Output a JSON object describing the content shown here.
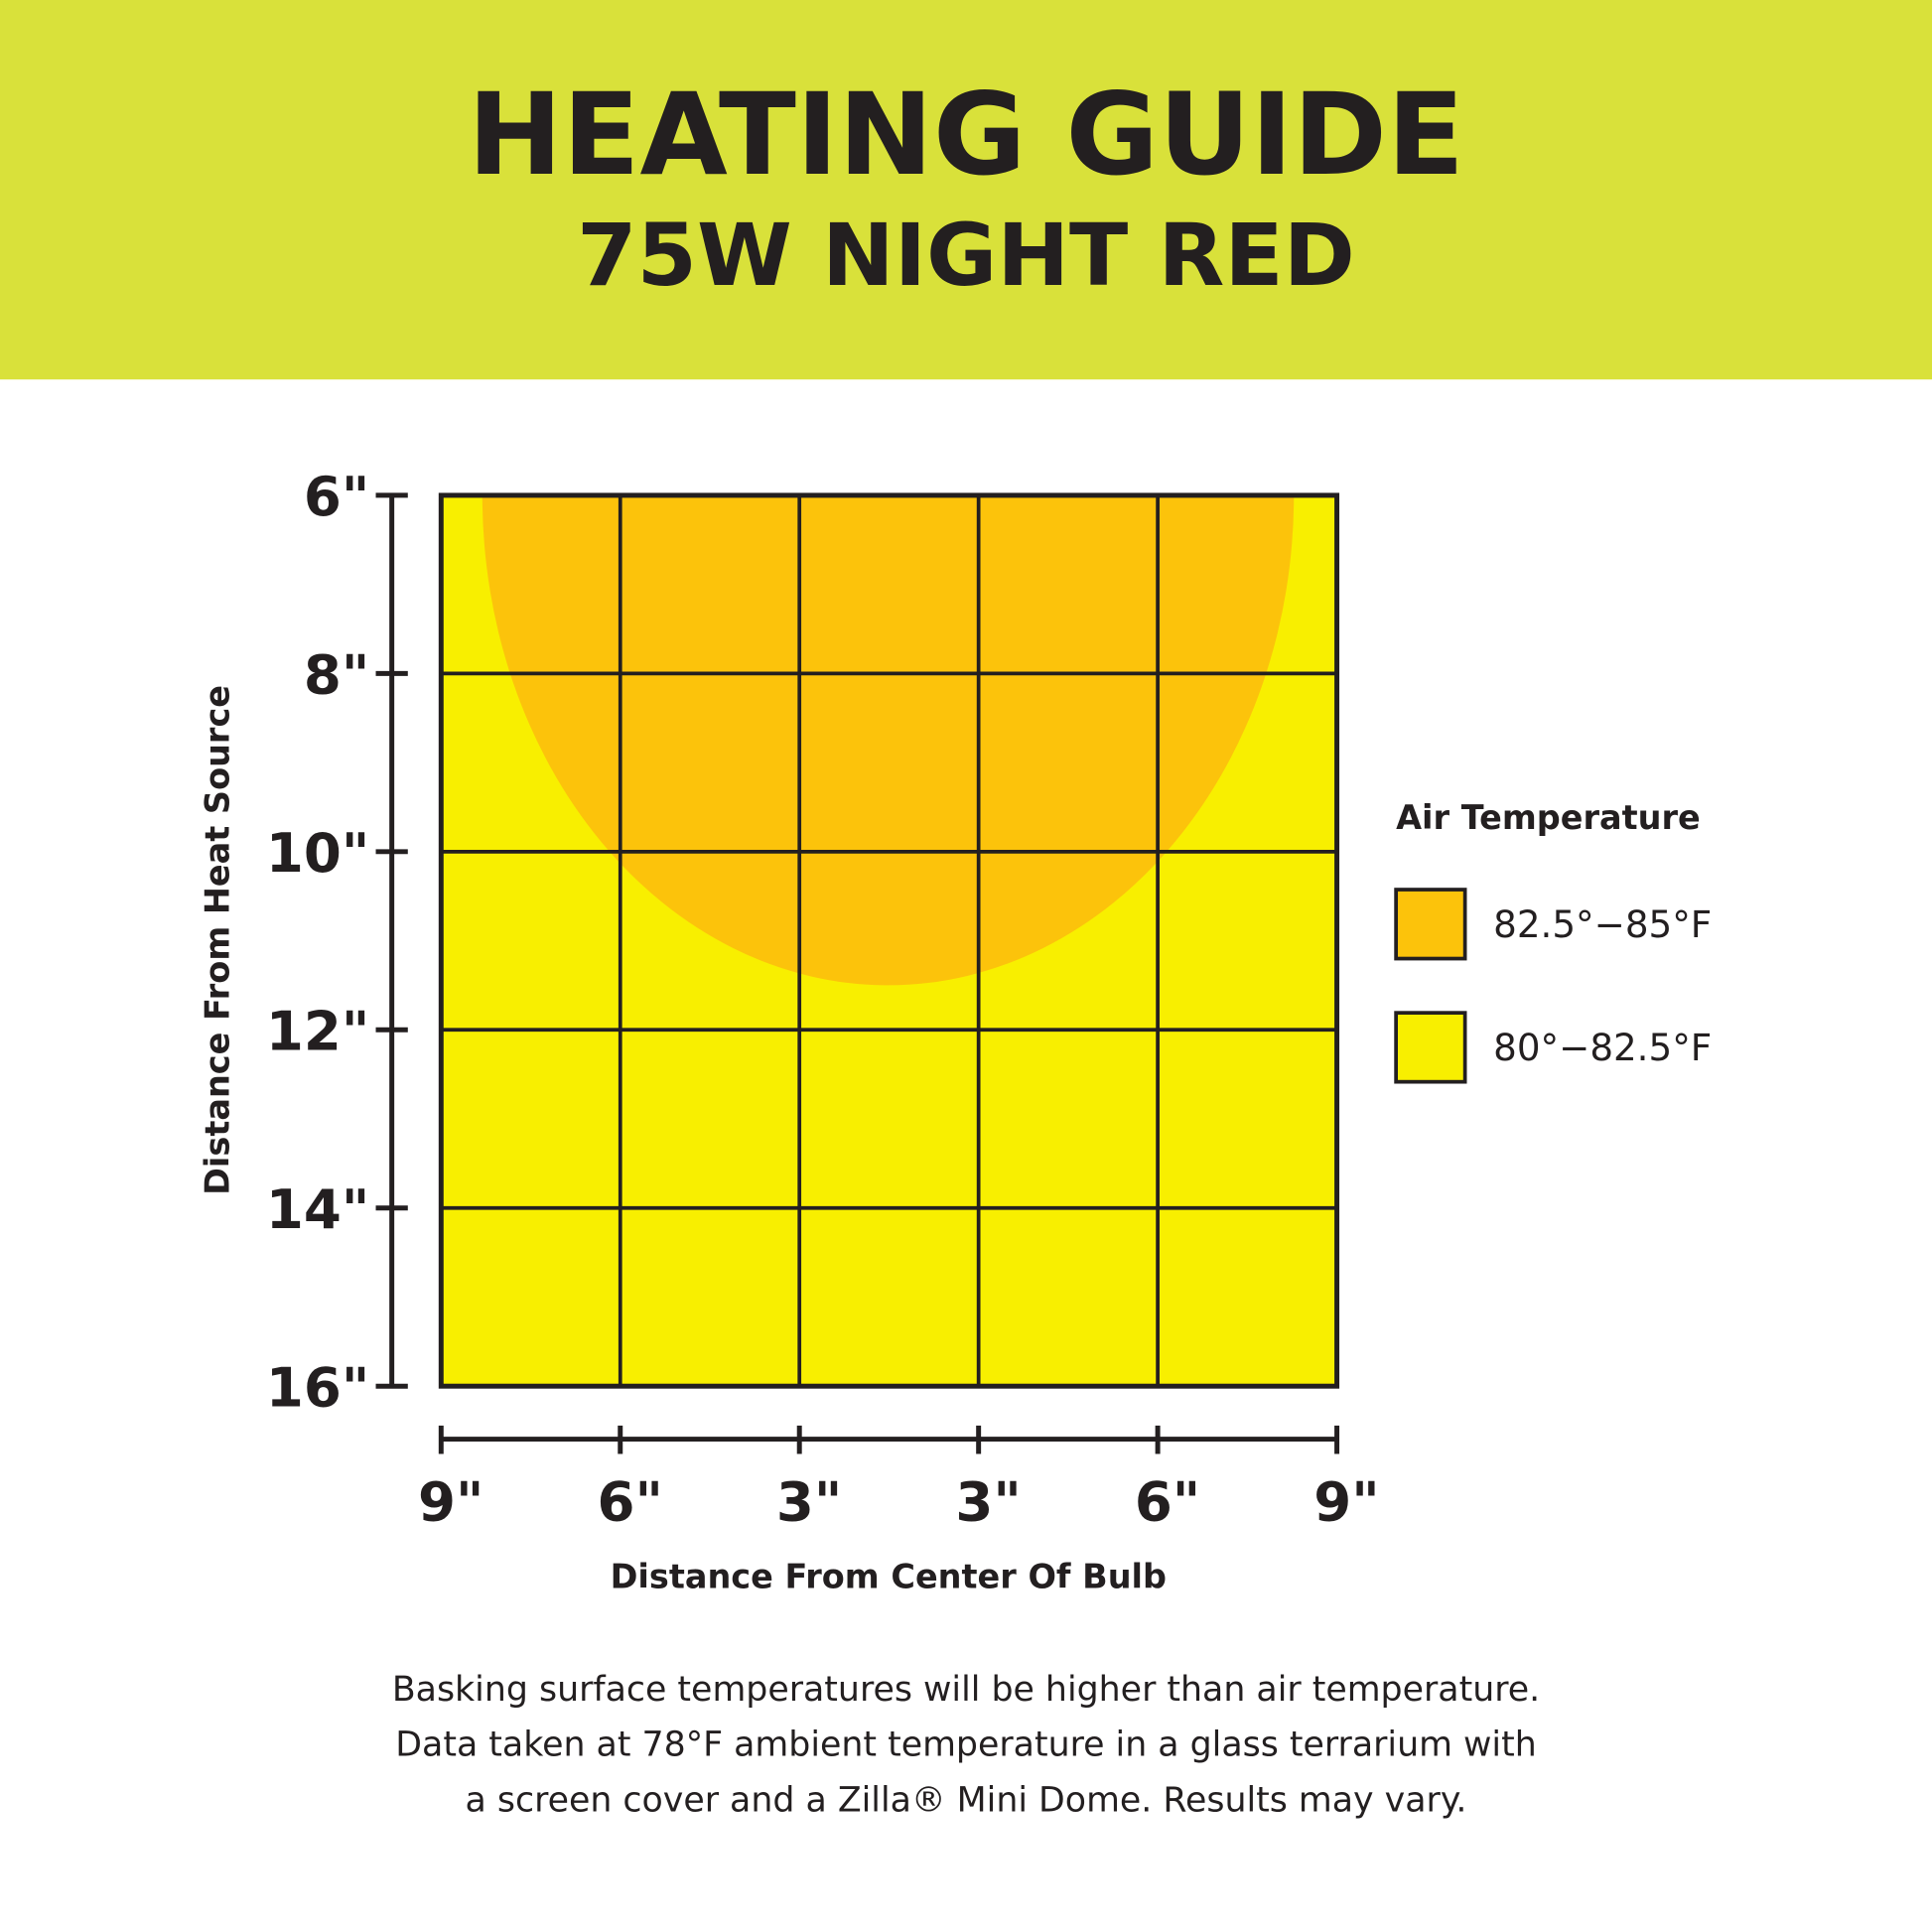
{
  "chart_data": {
    "type": "heat-zone",
    "title": "HEATING GUIDE",
    "subtitle": "75W NIGHT RED",
    "y_label": "Distance From Heat Source",
    "x_label": "Distance From Center Of Bulb",
    "categories": [
      "9\"",
      "6\"",
      "3\"",
      "3\"",
      "6\"",
      "9\""
    ],
    "ylim": [
      6,
      16
    ],
    "yticks": [
      {
        "value": 6,
        "label": "6\""
      },
      {
        "value": 8,
        "label": "8\""
      },
      {
        "value": 10,
        "label": "10\""
      },
      {
        "value": 12,
        "label": "12\""
      },
      {
        "value": 14,
        "label": "14\""
      },
      {
        "value": 16,
        "label": "16\""
      }
    ],
    "grid": true,
    "legend_title": "Air Temperature",
    "series": [
      {
        "name": "82.5°−85°F",
        "color": "#fcc30b",
        "x_range": [
          0.23,
          4.76
        ],
        "depth": 11.5
      },
      {
        "name": "80°−82.5°F",
        "color": "#f8ef00",
        "x_range": [
          0,
          5
        ],
        "depth": 16
      }
    ],
    "note": [
      "Basking surface temperatures will be higher than air temperature.",
      "Data taken at 78°F ambient temperature in a glass terrarium with",
      "a screen cover and a Zilla® Mini Dome. Results may vary."
    ]
  }
}
